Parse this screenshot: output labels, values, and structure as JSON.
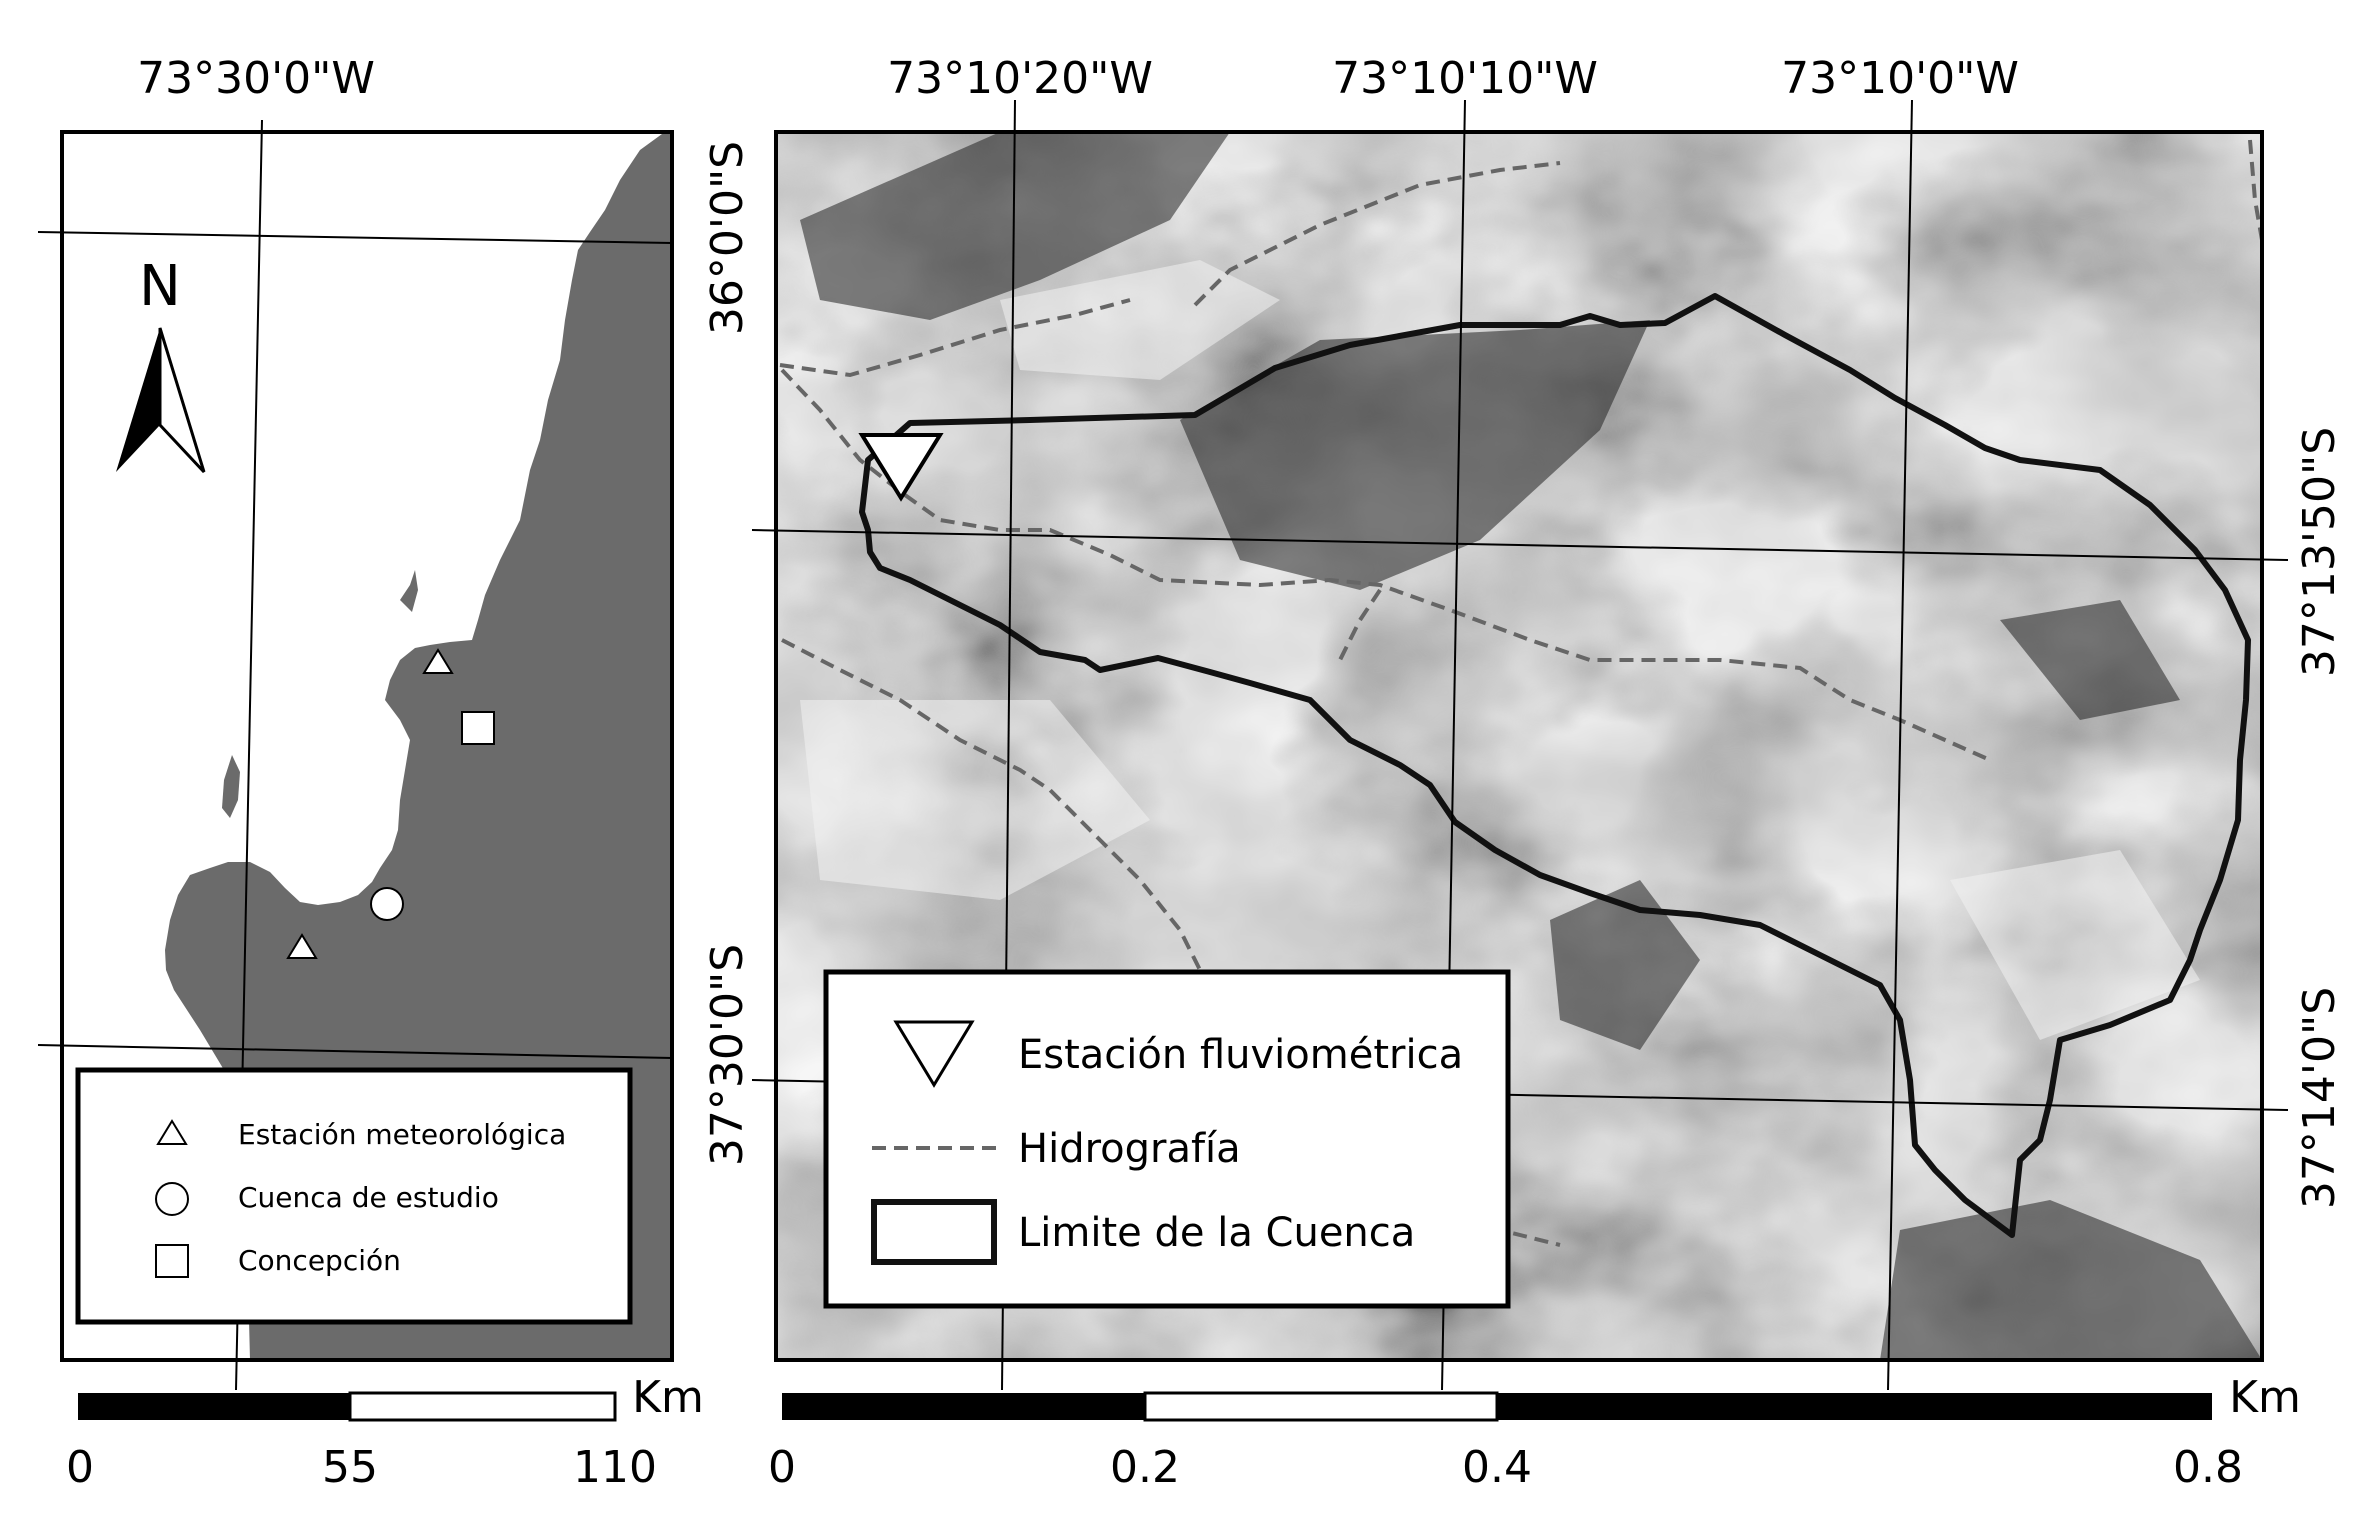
{
  "overview_map": {
    "north_label": "N",
    "top_lon_labels": [
      "73°30'0\"W"
    ],
    "right_lat_labels": [
      "36°0'0\"S",
      "37°30'0\"S"
    ],
    "legend": [
      {
        "symbol": "triangle",
        "label": "Estación meteorológica"
      },
      {
        "symbol": "circle",
        "label": "Cuenca de estudio"
      },
      {
        "symbol": "square",
        "label": "Concepción"
      }
    ],
    "scale_bar": {
      "unit": "Km",
      "ticks": [
        "0",
        "55",
        "110"
      ]
    },
    "colors": {
      "land": "#6b6b6b",
      "sea": "#ffffff"
    }
  },
  "detail_map": {
    "top_lon_labels": [
      "73°10'20\"W",
      "73°10'10\"W",
      "73°10'0\"W"
    ],
    "right_lat_labels": [
      "37°13'50\"S",
      "37°14'0\"S"
    ],
    "legend": [
      {
        "symbol": "inverted-triangle",
        "label": "Estación fluviométrica"
      },
      {
        "symbol": "dashed-line",
        "label": "Hidrografía"
      },
      {
        "symbol": "thick-outline",
        "label": "Limite de la Cuenca"
      }
    ],
    "scale_bar": {
      "unit": "Km",
      "ticks": [
        "0",
        "0.2",
        "0.4",
        "0.8"
      ]
    },
    "colors": {
      "hydro": "#666666",
      "boundary": "#111111"
    }
  }
}
